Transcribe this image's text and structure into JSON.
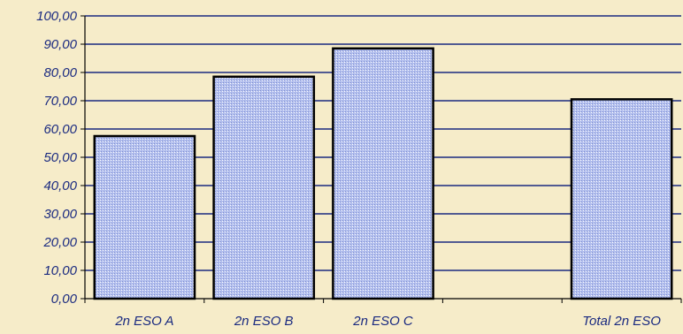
{
  "chart_data": {
    "type": "bar",
    "categories": [
      "2n ESO A",
      "2n ESO B",
      "2n ESO C",
      "",
      "Total 2n ESO"
    ],
    "values": [
      57.5,
      78.5,
      88.5,
      null,
      70.5
    ],
    "ylim": [
      0,
      100
    ],
    "yticks": [
      "0,00",
      "10,00",
      "20,00",
      "30,00",
      "40,00",
      "50,00",
      "60,00",
      "70,00",
      "80,00",
      "90,00",
      "100,00"
    ],
    "grid": true,
    "legend": "none",
    "colors": {
      "background": "#f6ecc9",
      "bar_fill": "#a9b6e6",
      "bar_stroke": "#000000",
      "gridline": "#1a2a80",
      "axis": "#000000",
      "text": "#1a2a80"
    }
  }
}
